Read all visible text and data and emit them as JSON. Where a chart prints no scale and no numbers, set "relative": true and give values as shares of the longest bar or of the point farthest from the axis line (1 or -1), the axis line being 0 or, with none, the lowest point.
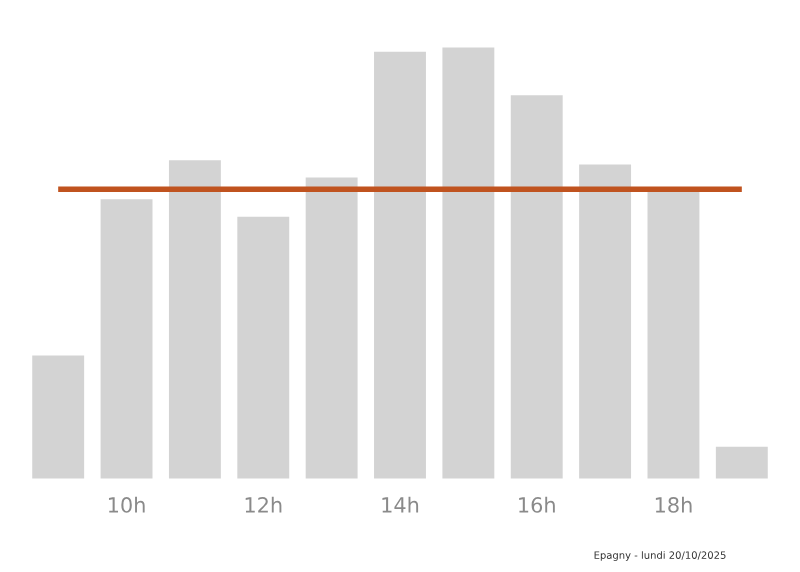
{
  "chart_data": {
    "type": "bar",
    "relative": true,
    "categories": [
      null,
      "10h",
      null,
      "12h",
      null,
      "14h",
      null,
      "16h",
      null,
      "18h",
      null
    ],
    "series": [
      {
        "color": "#d3d3d3",
        "values": [
          0.29,
          0.65,
          0.74,
          0.61,
          0.7,
          0.99,
          1,
          0.89,
          0.73,
          0.67,
          0.08
        ]
      }
    ],
    "ref_lines": [
      {
        "axis": "y",
        "value": 0.67,
        "color": "#c0531f"
      }
    ],
    "annotations": [
      "Epagny - lundi 20/10/2025"
    ],
    "grid": false,
    "legend": false
  }
}
